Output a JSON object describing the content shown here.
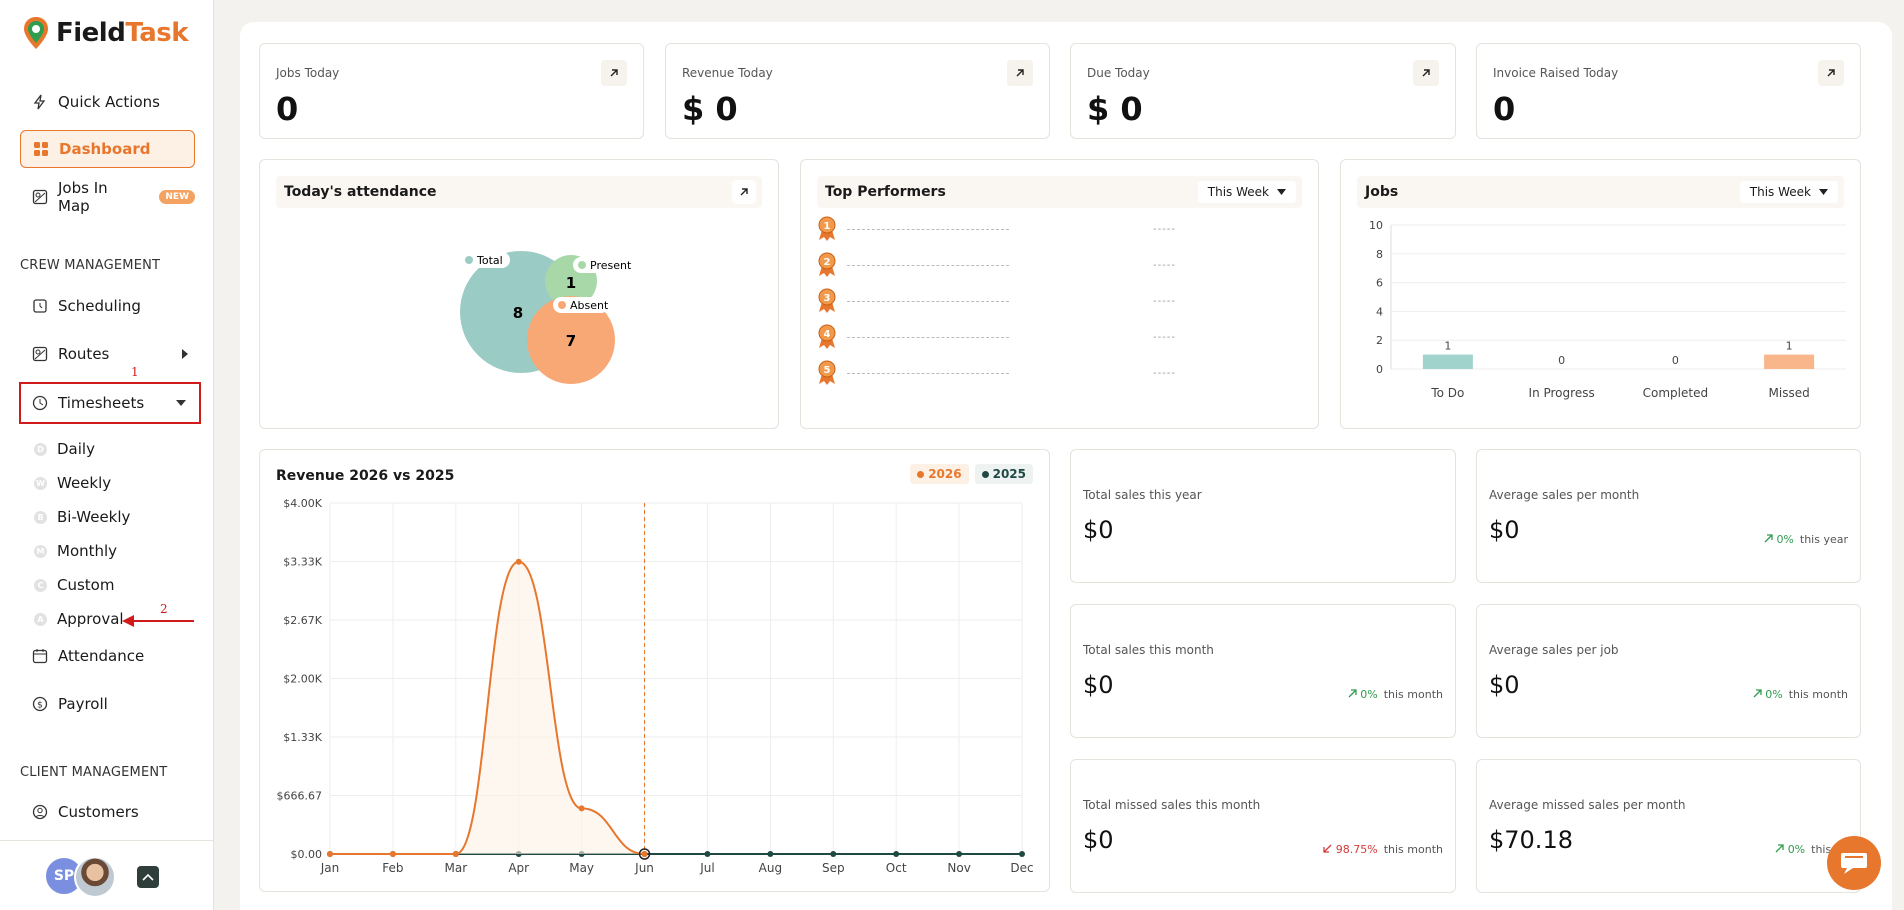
{
  "brand": {
    "name_part1": "Field",
    "name_part2": "Task",
    "accent": "#e8772e"
  },
  "nav": {
    "quick_actions": "Quick Actions",
    "dashboard": "Dashboard",
    "jobs_in_map": "Jobs In Map",
    "new_badge": "NEW",
    "crew_section": "CREW MANAGEMENT",
    "scheduling": "Scheduling",
    "routes": "Routes",
    "timesheets": "Timesheets",
    "timesheet_items": [
      {
        "letter": "D",
        "label": "Daily"
      },
      {
        "letter": "W",
        "label": "Weekly"
      },
      {
        "letter": "B",
        "label": "Bi-Weekly"
      },
      {
        "letter": "M",
        "label": "Monthly"
      },
      {
        "letter": "C",
        "label": "Custom"
      },
      {
        "letter": "A",
        "label": "Approval"
      }
    ],
    "attendance": "Attendance",
    "payroll": "Payroll",
    "client_section": "CLIENT MANAGEMENT",
    "customers": "Customers"
  },
  "annotations": {
    "one": "1",
    "two": "2"
  },
  "user": {
    "initials": "SP"
  },
  "stats": [
    {
      "label": "Jobs Today",
      "value": "0"
    },
    {
      "label": "Revenue Today",
      "value": "$ 0"
    },
    {
      "label": "Due Today",
      "value": "$ 0"
    },
    {
      "label": "Invoice Raised Today",
      "value": "0"
    }
  ],
  "attendance": {
    "title": "Today's attendance",
    "total_label": "Total",
    "total_value": "8",
    "present_label": "Present",
    "present_value": "1",
    "absent_label": "Absent",
    "absent_value": "7"
  },
  "performers": {
    "title": "Top Performers",
    "period": "This Week",
    "ranks": [
      "1",
      "2",
      "3",
      "4",
      "5"
    ],
    "placeholder": "-----"
  },
  "jobs_chart": {
    "title": "Jobs",
    "period": "This Week",
    "chart_data": {
      "type": "bar",
      "categories": [
        "To Do",
        "In Progress",
        "Completed",
        "Missed"
      ],
      "values": [
        1,
        0,
        0,
        1
      ],
      "colors": [
        "#9fd3cc",
        "#9fd3cc",
        "#9fd3cc",
        "#f8b68a"
      ],
      "ylim": [
        0,
        10
      ],
      "yticks": [
        "0",
        "2",
        "4",
        "6",
        "8",
        "10"
      ],
      "grid": true
    }
  },
  "revenue_chart": {
    "title": "Revenue 2026 vs 2025",
    "legend": [
      {
        "name": "2026",
        "color": "#e8772e"
      },
      {
        "name": "2025",
        "color": "#1f4a44"
      }
    ],
    "chart_data": {
      "type": "line",
      "x": [
        "Jan",
        "Feb",
        "Mar",
        "Apr",
        "May",
        "Jun",
        "Jul",
        "Aug",
        "Sep",
        "Oct",
        "Nov",
        "Dec"
      ],
      "yticks": [
        "$4.00K",
        "$3.33K",
        "$2.67K",
        "$2.00K",
        "$1.33K",
        "$666.67",
        "$0.00"
      ],
      "ylim": [
        0,
        4000
      ],
      "series": [
        {
          "name": "2026",
          "color": "#e8772e",
          "values": [
            0,
            0,
            0,
            3330,
            520,
            0,
            null,
            null,
            null,
            null,
            null,
            null
          ]
        },
        {
          "name": "2025",
          "color": "#1f4a44",
          "values": [
            0,
            0,
            0,
            0,
            0,
            0,
            0,
            0,
            0,
            0,
            0,
            0
          ]
        }
      ],
      "current_month": "Jun",
      "grid": true
    }
  },
  "sales": [
    {
      "label": "Total sales this year",
      "value": "$0",
      "delta": "",
      "period": ""
    },
    {
      "label": "Average sales per month",
      "value": "$0",
      "delta": "0%",
      "period": "this year",
      "dir": "up"
    },
    {
      "label": "Total sales this month",
      "value": "$0",
      "delta": "0%",
      "period": "this month",
      "dir": "up"
    },
    {
      "label": "Average sales per job",
      "value": "$0",
      "delta": "0%",
      "period": "this month",
      "dir": "up"
    },
    {
      "label": "Total missed sales this month",
      "value": "$0",
      "delta": "98.75%",
      "period": "this month",
      "dir": "down"
    },
    {
      "label": "Average missed sales per month",
      "value": "$70.18",
      "delta": "0%",
      "period": "this ye",
      "dir": "up"
    }
  ]
}
